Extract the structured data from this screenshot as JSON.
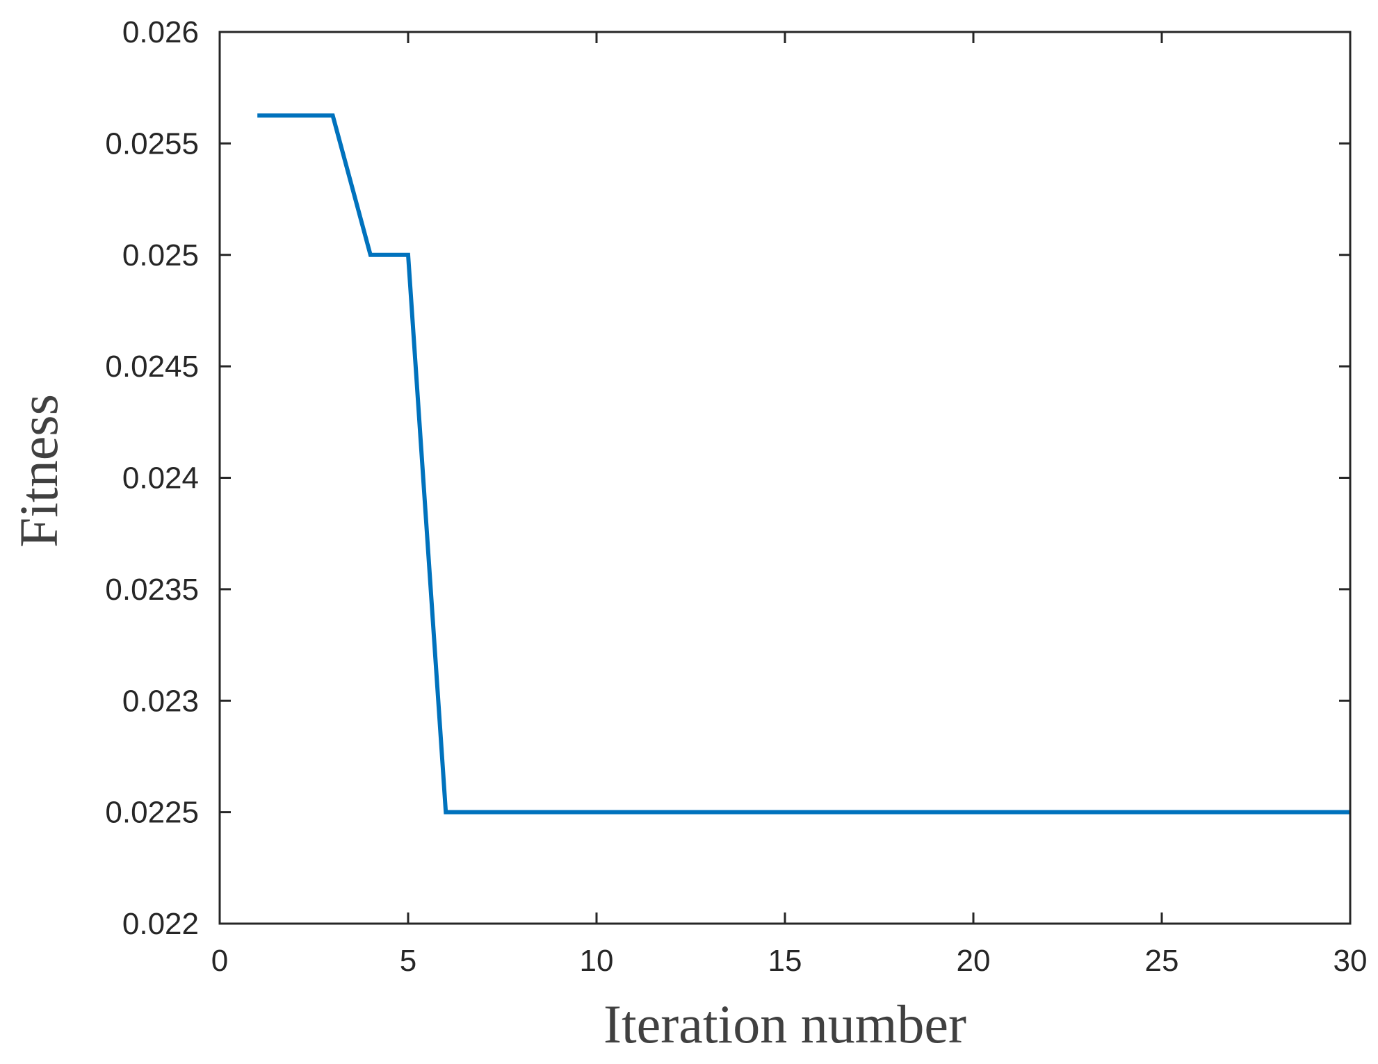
{
  "chart_data": {
    "type": "line",
    "title": "",
    "xlabel": "Iteration number",
    "ylabel": "Fitness",
    "xlim": [
      0,
      30
    ],
    "ylim": [
      0.022,
      0.026
    ],
    "xticks": [
      0,
      5,
      10,
      15,
      20,
      25,
      30
    ],
    "xtick_labels": [
      "0",
      "5",
      "10",
      "15",
      "20",
      "25",
      "30"
    ],
    "yticks": [
      0.022,
      0.0225,
      0.023,
      0.0235,
      0.024,
      0.0245,
      0.025,
      0.0255,
      0.026
    ],
    "ytick_labels": [
      "0.022",
      "0.0225",
      "0.023",
      "0.0235",
      "0.024",
      "0.0245",
      "0.025",
      "0.0255",
      "0.026"
    ],
    "grid": false,
    "series": [
      {
        "color": "#0072bd",
        "x": [
          1,
          2,
          3,
          4,
          5,
          6,
          7,
          8,
          9,
          10,
          11,
          12,
          13,
          14,
          15,
          16,
          17,
          18,
          19,
          20,
          21,
          22,
          23,
          24,
          25,
          26,
          27,
          28,
          29,
          30
        ],
        "y": [
          0.025625,
          0.025625,
          0.025625,
          0.025,
          0.025,
          0.0225,
          0.0225,
          0.0225,
          0.0225,
          0.0225,
          0.0225,
          0.0225,
          0.0225,
          0.0225,
          0.0225,
          0.0225,
          0.0225,
          0.0225,
          0.0225,
          0.0225,
          0.0225,
          0.0225,
          0.0225,
          0.0225,
          0.0225,
          0.0225,
          0.0225,
          0.0225,
          0.0225,
          0.0225
        ]
      }
    ]
  }
}
